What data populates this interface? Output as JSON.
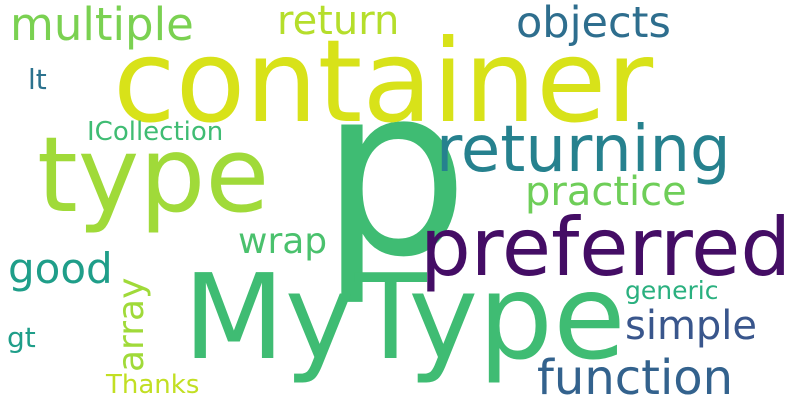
{
  "palette": [
    "#fde725",
    "#b5de2b",
    "#6ece58",
    "#35b779",
    "#1f9e89",
    "#26828e",
    "#31688e",
    "#3e4989",
    "#482878",
    "#440154"
  ],
  "words": [
    {
      "text": "p",
      "color": "#3fbc73"
    },
    {
      "text": "container",
      "color": "#d8e219"
    },
    {
      "text": "MyType",
      "color": "#3fbc73"
    },
    {
      "text": "type",
      "color": "#a0da39"
    },
    {
      "text": "preferred",
      "color": "#440d65"
    },
    {
      "text": "returning",
      "color": "#26818e"
    },
    {
      "text": "function",
      "color": "#33628d"
    },
    {
      "text": "multiple",
      "color": "#7ad151"
    },
    {
      "text": "return",
      "color": "#b5de2b"
    },
    {
      "text": "objects",
      "color": "#2e6e8e"
    },
    {
      "text": "simple",
      "color": "#39568c"
    },
    {
      "text": "practice",
      "color": "#6ece58"
    },
    {
      "text": "good",
      "color": "#1f9e89"
    },
    {
      "text": "array",
      "color": "#a0da39"
    },
    {
      "text": "wrap",
      "color": "#4ac16d"
    },
    {
      "text": "generic",
      "color": "#2ab07f"
    },
    {
      "text": "ICollection",
      "color": "#3fbc73"
    },
    {
      "text": "lt",
      "color": "#2c728e"
    },
    {
      "text": "gt",
      "color": "#1f9e89"
    },
    {
      "text": "Thanks",
      "color": "#c2df23"
    }
  ]
}
